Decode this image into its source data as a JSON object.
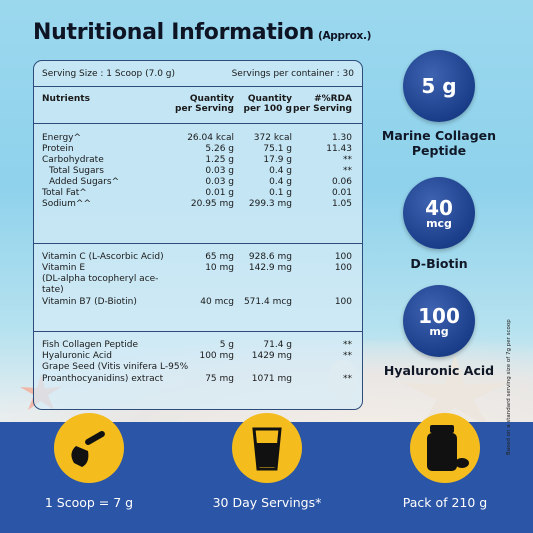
{
  "title": "Nutritional Information",
  "title_note": "(Approx.)",
  "serving": {
    "size": "Serving Size : 1 Scoop (7.0 g)",
    "per_container": "Servings per container : 30"
  },
  "headers": {
    "nutrients": "Nutrients",
    "per_serving": "Quantity\nper Serving",
    "per_100g": "Quantity\nper 100 g",
    "rda": "#%RDA\nper Serving"
  },
  "rows": [
    {
      "name": "Energy^",
      "serv": "26.04 kcal",
      "g100": "372 kcal",
      "rda": "1.30"
    },
    {
      "name": "Protein",
      "serv": "5.26 g",
      "g100": "75.1 g",
      "rda": "11.43"
    },
    {
      "name": "Carbohydrate",
      "serv": "1.25 g",
      "g100": "17.9 g",
      "rda": "**"
    },
    {
      "name": "Total Sugars",
      "serv": "0.03 g",
      "g100": "0.4 g",
      "rda": "**"
    },
    {
      "name": "Added Sugars^",
      "serv": "0.03 g",
      "g100": "0.4 g",
      "rda": "0.06"
    },
    {
      "name": "Total Fat^",
      "serv": "0.01 g",
      "g100": "0.1 g",
      "rda": "0.01"
    },
    {
      "name": "Sodium^^",
      "serv": "20.95 mg",
      "g100": "299.3 mg",
      "rda": "1.05"
    },
    {
      "name": "Vitamin C (L-Ascorbic Acid)",
      "serv": "65 mg",
      "g100": "928.6 mg",
      "rda": "100"
    },
    {
      "name": "Vitamin E",
      "serv": "10 mg",
      "g100": "142.9 mg",
      "rda": "100"
    },
    {
      "name": "(DL-alpha tocopheryl ace-",
      "serv": "",
      "g100": "",
      "rda": ""
    },
    {
      "name": "tate)",
      "serv": "",
      "g100": "",
      "rda": ""
    },
    {
      "name": "Vitamin B7 (D-Biotin)",
      "serv": "40 mcg",
      "g100": "571.4 mcg",
      "rda": "100"
    },
    {
      "name": "Fish Collagen Peptide",
      "serv": "5 g",
      "g100": "71.4 g",
      "rda": "**"
    },
    {
      "name": "Hyaluronic Acid",
      "serv": "100 mg",
      "g100": "1429 mg",
      "rda": "**"
    },
    {
      "name": "Grape Seed (Vitis vinifera L-95%",
      "serv": "",
      "g100": "",
      "rda": ""
    },
    {
      "name": "Proanthocyanidins) extract",
      "serv": "75 mg",
      "g100": "1071 mg",
      "rda": "**"
    }
  ],
  "badges": [
    {
      "value": "5 g",
      "unit": "",
      "label": "Marine Collagen Peptide"
    },
    {
      "value": "40",
      "unit": "mcg",
      "label": "D-Biotin"
    },
    {
      "value": "100",
      "unit": "mg",
      "label": "Hyaluronic Acid"
    }
  ],
  "features": [
    {
      "icon": "scoop-icon",
      "label": "1 Scoop = 7 g"
    },
    {
      "icon": "glass-icon",
      "label": "30 Day Servings*"
    },
    {
      "icon": "jar-icon",
      "label": "Pack of 210 g"
    }
  ],
  "footnote": "Based on a standard serving size of 7g per scoop",
  "colors": {
    "badge": "#1f438f",
    "band": "#2b55a6",
    "icon_circle": "#f4bd1d"
  }
}
